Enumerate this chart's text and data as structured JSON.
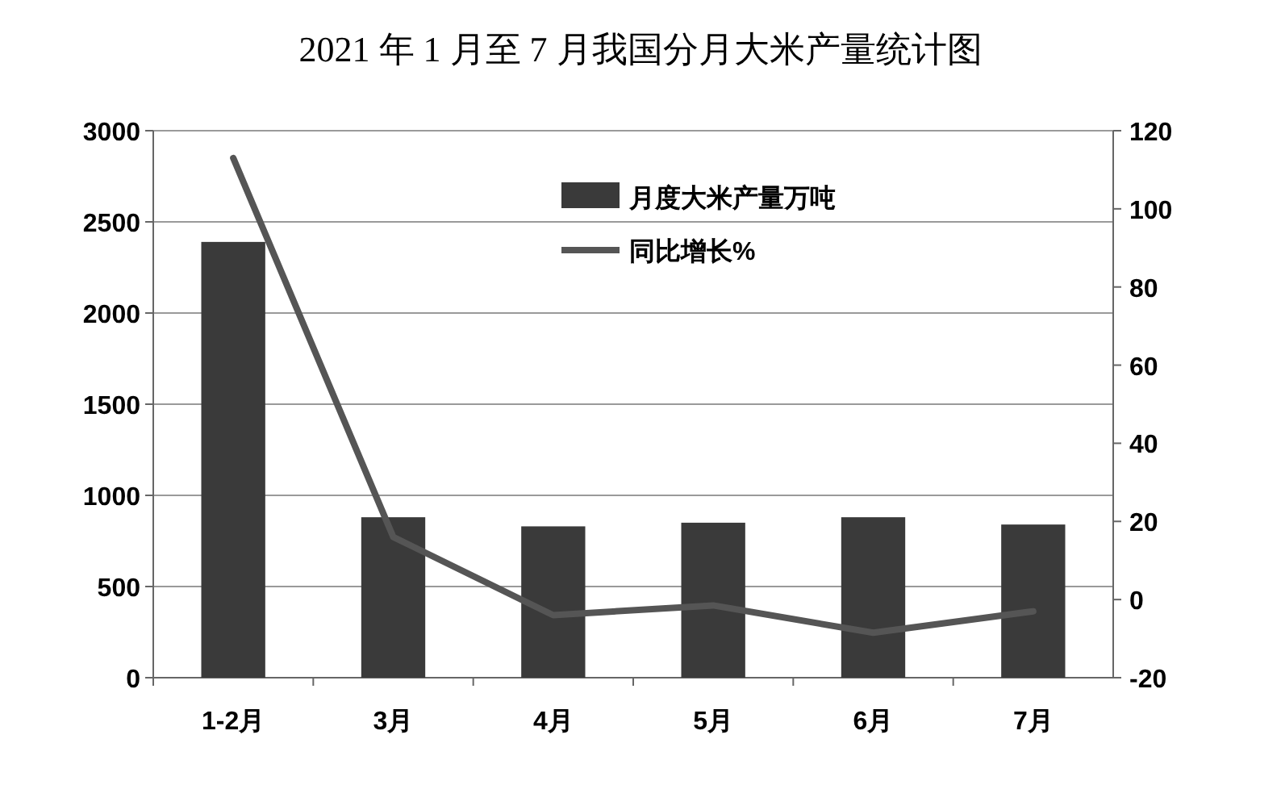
{
  "chart_data": {
    "type": "bar",
    "title": "2021 年 1 月至 7 月我国分月大米产量统计图",
    "categories": [
      "1-2月",
      "3月",
      "4月",
      "5月",
      "6月",
      "7月"
    ],
    "series": [
      {
        "name": "月度大米产量万吨",
        "color": "#3a3a3a",
        "values": [
          2390,
          880,
          830,
          850,
          880,
          840
        ]
      },
      {
        "name": "同比增长%",
        "type": "line",
        "axis": "y2",
        "color": "#555555",
        "values": [
          113,
          16,
          -4,
          -1.5,
          -8.5,
          -3
        ]
      }
    ],
    "ylim": [
      0,
      3000
    ],
    "yticks": [
      0,
      500,
      1000,
      1500,
      2000,
      2500,
      3000
    ],
    "y2lim": [
      -20,
      120
    ],
    "y2ticks": [
      -20,
      0,
      20,
      40,
      60,
      80,
      100,
      120
    ],
    "grid": "y",
    "legend": "top right",
    "marker": "none",
    "line_style": "solid"
  }
}
